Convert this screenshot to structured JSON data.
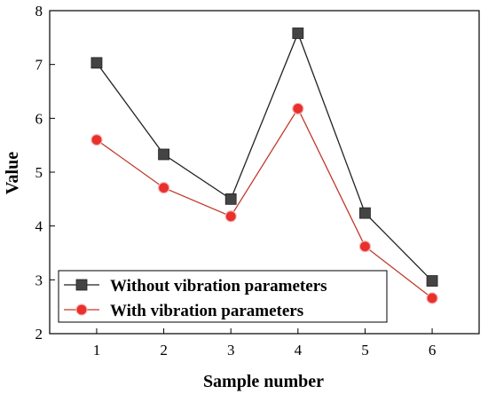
{
  "chart_data": {
    "type": "line",
    "xlabel": "Sample number",
    "ylabel": "Value",
    "x": [
      1,
      2,
      3,
      4,
      5,
      6
    ],
    "xlim": [
      0.3,
      6.7
    ],
    "ylim": [
      2,
      8
    ],
    "xticks": [
      "1",
      "2",
      "3",
      "4",
      "5",
      "6"
    ],
    "yticks": [
      "2",
      "3",
      "4",
      "5",
      "6",
      "7",
      "8"
    ],
    "grid": false,
    "legend_position": "bottom-left",
    "series": [
      {
        "name": "Without vibration parameters",
        "values": [
          7.03,
          5.33,
          4.5,
          7.58,
          4.24,
          2.98
        ],
        "color": "#222222",
        "marker": "square"
      },
      {
        "name": "With vibration parameters",
        "values": [
          5.6,
          4.71,
          4.18,
          6.18,
          3.62,
          2.66
        ],
        "color": "#e8302c",
        "line_color": "#c0392b",
        "marker": "circle"
      }
    ]
  }
}
